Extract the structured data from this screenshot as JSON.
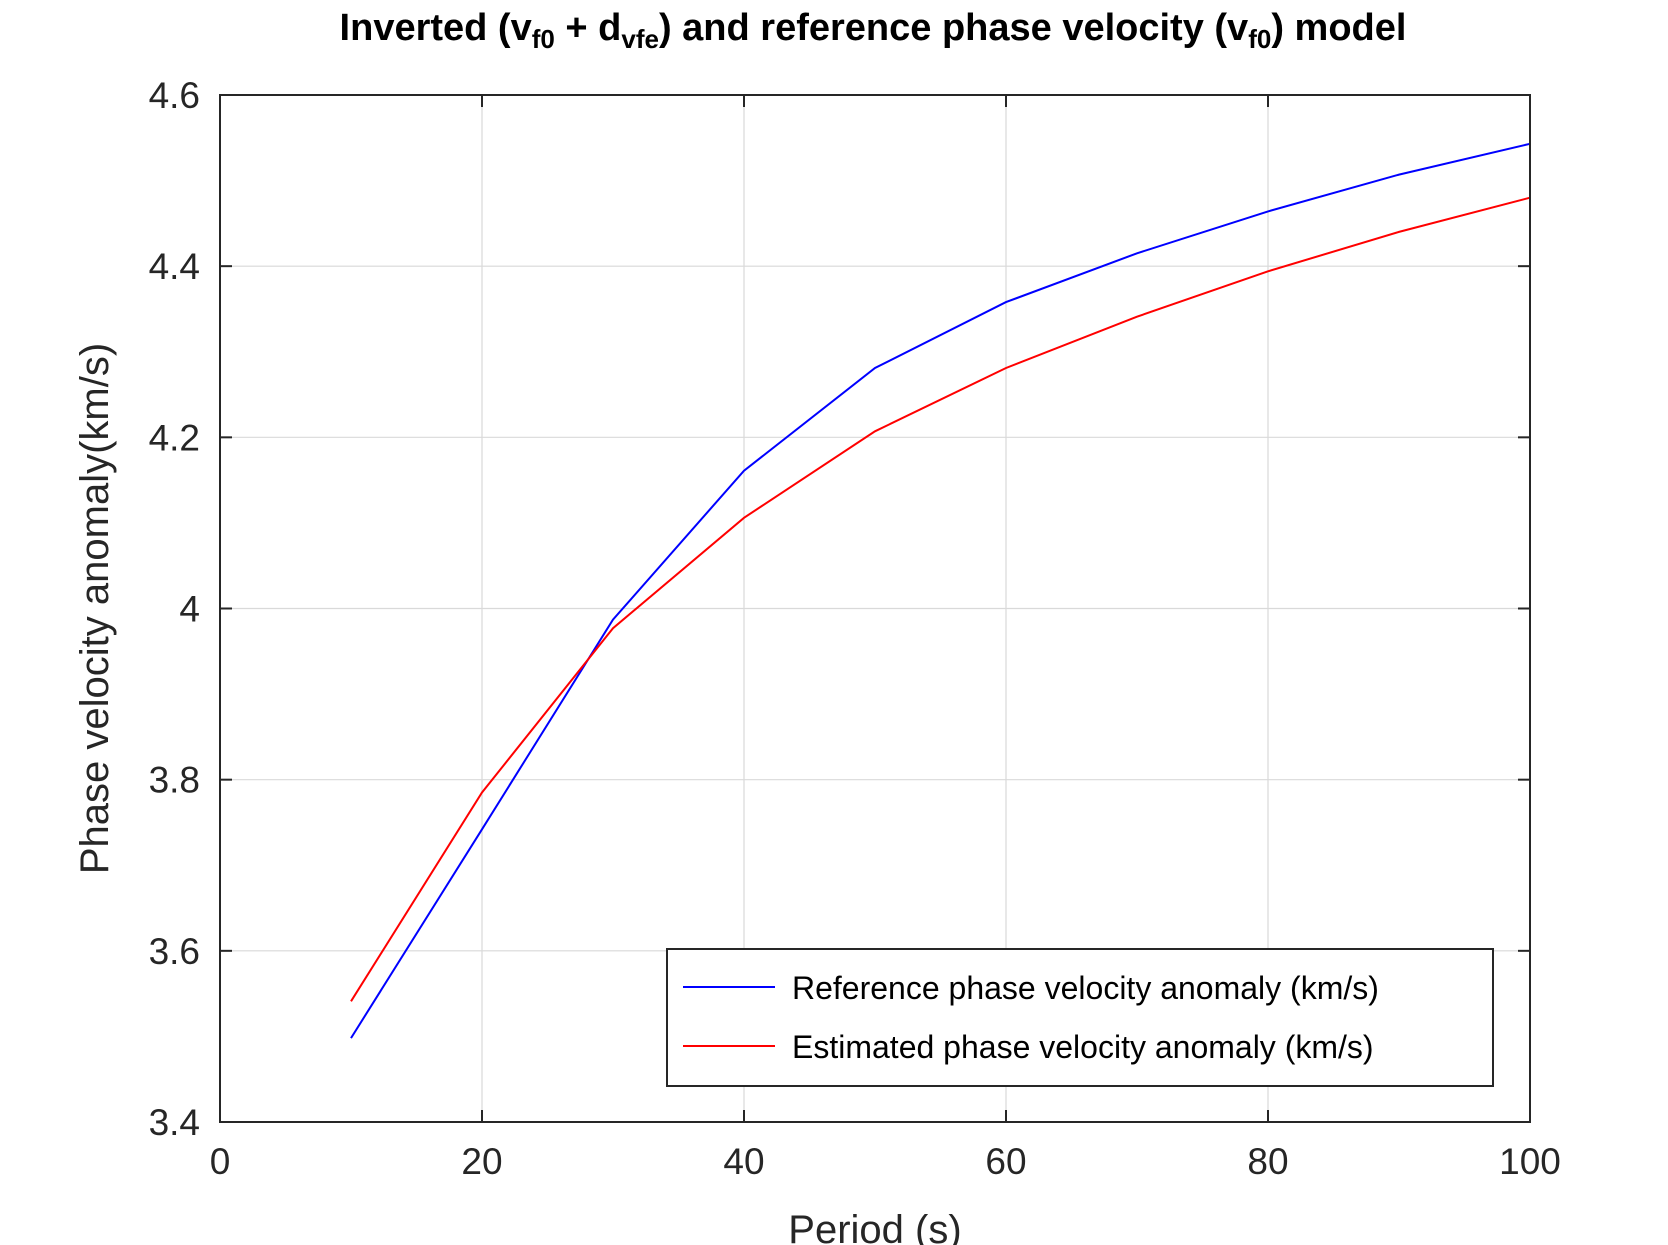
{
  "chart_data": {
    "type": "line",
    "title": {
      "prefix": "Inverted (v",
      "sub1": "f0",
      "mid1": " + d",
      "sub2": "vfe",
      "mid2": ") and reference phase velocity (v",
      "sub3": "f0",
      "suffix": ") model"
    },
    "xlabel": "Period (s)",
    "ylabel": "Phase velocity anomaly(km/s)",
    "xlim": [
      0,
      100
    ],
    "ylim": [
      3.4,
      4.6
    ],
    "xticks": [
      0,
      20,
      40,
      60,
      80,
      100
    ],
    "xtick_labels": [
      "0",
      "20",
      "40",
      "60",
      "80",
      "100"
    ],
    "yticks": [
      3.4,
      3.6,
      3.8,
      4.0,
      4.2,
      4.4,
      4.6
    ],
    "ytick_labels": [
      "3.4",
      "3.6",
      "3.8",
      "4",
      "4.2",
      "4.4",
      "4.6"
    ],
    "grid": true,
    "legend_position": "bottom-right",
    "x": [
      10,
      20,
      30,
      40,
      50,
      60,
      70,
      80,
      90,
      100
    ],
    "series": [
      {
        "name": "Reference phase velocity anomaly (km/s)",
        "color": "#0000ff",
        "values": [
          3.498,
          3.742,
          3.987,
          4.161,
          4.281,
          4.358,
          4.415,
          4.464,
          4.507,
          4.543
        ]
      },
      {
        "name": "Estimated phase velocity anomaly (km/s)",
        "color": "#ff0000",
        "values": [
          3.541,
          3.785,
          3.977,
          4.106,
          4.207,
          4.281,
          4.341,
          4.394,
          4.44,
          4.48
        ]
      }
    ]
  }
}
